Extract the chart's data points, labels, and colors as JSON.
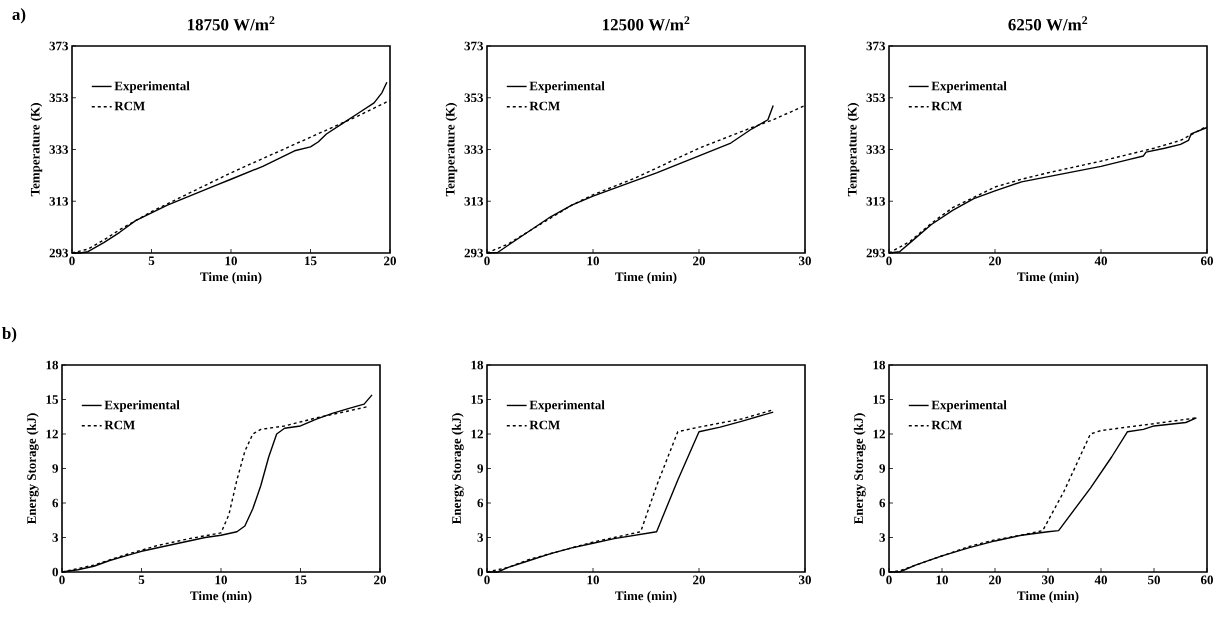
{
  "chart_data": [
    {
      "type": "line",
      "title": "18750 W/m$^{2}$",
      "xlabel": "Time (min)",
      "ylabel": "Temperature (K)",
      "annotations": [
        "a)"
      ],
      "xlim": [
        0,
        20
      ],
      "ylim": [
        293,
        373
      ],
      "xticks": [
        0,
        5,
        10,
        15,
        20
      ],
      "yticks": [
        293,
        313,
        333,
        353,
        373
      ],
      "legend": "top left",
      "series": [
        {
          "name": "Experimental",
          "color": "#000000",
          "line_style": "solid",
          "x": [
            0,
            0.5,
            1,
            2,
            3,
            4,
            5,
            6,
            7,
            8,
            9,
            10,
            11,
            12,
            13,
            14,
            15,
            15.5,
            16,
            17,
            18,
            19,
            19.5,
            19.8
          ],
          "values": [
            293,
            293,
            293.5,
            297,
            301,
            305.5,
            308.5,
            311.5,
            314,
            316.5,
            319,
            321.5,
            324,
            326.5,
            329.5,
            332.5,
            334,
            336,
            339,
            343,
            347,
            351,
            355,
            359
          ]
        },
        {
          "name": "RCM",
          "color": "#000000",
          "line_style": "dashed",
          "x": [
            0,
            1,
            2,
            3,
            4,
            5,
            6,
            8,
            10,
            12,
            14,
            16,
            18,
            20
          ],
          "values": [
            293,
            294.5,
            298,
            302,
            305.5,
            309,
            312,
            318,
            324,
            329.5,
            335,
            340.5,
            346,
            352
          ]
        }
      ]
    },
    {
      "type": "line",
      "title": "12500 W/m$^{2}$",
      "xlabel": "Time (min)",
      "ylabel": "Temperature (K)",
      "xlim": [
        0,
        30
      ],
      "ylim": [
        293,
        373
      ],
      "xticks": [
        0,
        10,
        20,
        30
      ],
      "yticks": [
        293,
        313,
        333,
        353,
        373
      ],
      "legend": "top left",
      "series": [
        {
          "name": "Experimental",
          "color": "#000000",
          "line_style": "solid",
          "x": [
            0,
            1,
            2,
            4,
            6,
            8,
            10,
            13,
            16,
            20,
            23,
            25,
            26.5,
            27
          ],
          "values": [
            293,
            293.2,
            296,
            301.5,
            307,
            311.5,
            315,
            319.5,
            324,
            330.5,
            335.5,
            341,
            344.5,
            350
          ]
        },
        {
          "name": "RCM",
          "color": "#000000",
          "line_style": "dashed",
          "x": [
            0,
            2,
            4,
            6,
            8,
            10,
            14,
            20,
            25,
            27,
            30
          ],
          "values": [
            293,
            296.5,
            301.5,
            306.5,
            311.5,
            315.5,
            322,
            333.5,
            341.5,
            344.5,
            350
          ]
        }
      ]
    },
    {
      "type": "line",
      "title": "6250 W/m$^{2}$",
      "xlabel": "Time (min)",
      "ylabel": "Temperature (K)",
      "xlim": [
        0,
        60
      ],
      "ylim": [
        293,
        373
      ],
      "xticks": [
        0,
        20,
        40,
        60
      ],
      "yticks": [
        293,
        313,
        333,
        353,
        373
      ],
      "legend": "top left",
      "series": [
        {
          "name": "Experimental",
          "color": "#000000",
          "line_style": "solid",
          "x": [
            0,
            2,
            4,
            8,
            12,
            16,
            20,
            25,
            30,
            35,
            40,
            45,
            48,
            48.5,
            52,
            55,
            56.5,
            57,
            60
          ],
          "values": [
            293,
            293.5,
            297,
            304,
            309.5,
            314,
            317,
            320.5,
            322.5,
            324.5,
            326.5,
            329,
            330.5,
            332,
            333.5,
            335,
            336.5,
            339,
            341.5
          ]
        },
        {
          "name": "RCM",
          "color": "#000000",
          "line_style": "dashed",
          "x": [
            0,
            4,
            8,
            12,
            16,
            20,
            25,
            30,
            40,
            50,
            55,
            60
          ],
          "values": [
            293,
            297.5,
            304.5,
            310.5,
            314.5,
            318.5,
            321.5,
            324,
            328.5,
            333.5,
            336.5,
            342
          ]
        }
      ]
    },
    {
      "type": "line",
      "xlabel": "Time (min)",
      "ylabel": "Energy Storage (kJ)",
      "annotations": [
        "b)"
      ],
      "xlim": [
        0,
        20
      ],
      "ylim": [
        0,
        18
      ],
      "xticks": [
        0,
        5,
        10,
        15,
        20
      ],
      "yticks": [
        0,
        3,
        6,
        9,
        12,
        15,
        18
      ],
      "legend": "top left",
      "series": [
        {
          "name": "Experimental",
          "color": "#000000",
          "line_style": "solid",
          "x": [
            0,
            1,
            2,
            3,
            4,
            5,
            7,
            9,
            10,
            11,
            11.5,
            12,
            12.5,
            13,
            13.5,
            14,
            15,
            16,
            17,
            18,
            19,
            19.5
          ],
          "values": [
            0,
            0.2,
            0.5,
            1,
            1.4,
            1.8,
            2.4,
            3,
            3.2,
            3.5,
            4,
            5.5,
            7.5,
            10,
            12,
            12.5,
            12.7,
            13.3,
            13.8,
            14.2,
            14.6,
            15.4
          ]
        },
        {
          "name": "RCM",
          "color": "#000000",
          "line_style": "dashed",
          "x": [
            0,
            2,
            4,
            6,
            8,
            10,
            10.5,
            11,
            11.5,
            12,
            12.5,
            14,
            16,
            18,
            19.3
          ],
          "values": [
            0,
            0.6,
            1.5,
            2.3,
            2.9,
            3.4,
            5,
            8,
            10.5,
            12,
            12.4,
            12.7,
            13.4,
            14,
            14.4
          ]
        }
      ]
    },
    {
      "type": "line",
      "xlabel": "Time (min)",
      "ylabel": "Energy Storage (kJ)",
      "xlim": [
        0,
        30
      ],
      "ylim": [
        0,
        18
      ],
      "xticks": [
        0,
        10,
        20,
        30
      ],
      "yticks": [
        0,
        3,
        6,
        9,
        12,
        15,
        18
      ],
      "legend": "top left",
      "series": [
        {
          "name": "Experimental",
          "color": "#000000",
          "line_style": "solid",
          "x": [
            0,
            1,
            2,
            4,
            6,
            8,
            10,
            12,
            14,
            16,
            18,
            20,
            22,
            24,
            27
          ],
          "values": [
            0,
            0,
            0.4,
            1,
            1.6,
            2.1,
            2.5,
            2.9,
            3.2,
            3.5,
            8,
            12.2,
            12.6,
            13.1,
            13.9
          ]
        },
        {
          "name": "RCM",
          "color": "#000000",
          "line_style": "dashed",
          "x": [
            0,
            2,
            4,
            6,
            8,
            10,
            12,
            14.5,
            16,
            18,
            20,
            24,
            27
          ],
          "values": [
            0,
            0.4,
            1.1,
            1.6,
            2.1,
            2.6,
            3,
            3.5,
            7.5,
            12.2,
            12.6,
            13.3,
            14.1
          ]
        }
      ]
    },
    {
      "type": "line",
      "xlabel": "Time (min)",
      "ylabel": "Energy Storage (kJ)",
      "xlim": [
        0,
        60
      ],
      "ylim": [
        0,
        18
      ],
      "xticks": [
        0,
        10,
        20,
        30,
        40,
        50,
        60
      ],
      "yticks": [
        0,
        3,
        6,
        9,
        12,
        15,
        18
      ],
      "legend": "top left",
      "series": [
        {
          "name": "Experimental",
          "color": "#000000",
          "line_style": "solid",
          "x": [
            0,
            2,
            5,
            10,
            15,
            20,
            25,
            30,
            32,
            38,
            42,
            45,
            48,
            50,
            56,
            58
          ],
          "values": [
            0,
            0,
            0.6,
            1.4,
            2.1,
            2.7,
            3.2,
            3.5,
            3.6,
            7.3,
            10,
            12.2,
            12.4,
            12.7,
            13,
            13.4
          ]
        },
        {
          "name": "RCM",
          "color": "#000000",
          "line_style": "dashed",
          "x": [
            0,
            2,
            5,
            10,
            15,
            20,
            25,
            29,
            33,
            38,
            40,
            45,
            50,
            58
          ],
          "values": [
            0,
            0.1,
            0.6,
            1.4,
            2.2,
            2.8,
            3.2,
            3.6,
            7,
            12,
            12.3,
            12.6,
            12.9,
            13.4
          ]
        }
      ]
    }
  ]
}
